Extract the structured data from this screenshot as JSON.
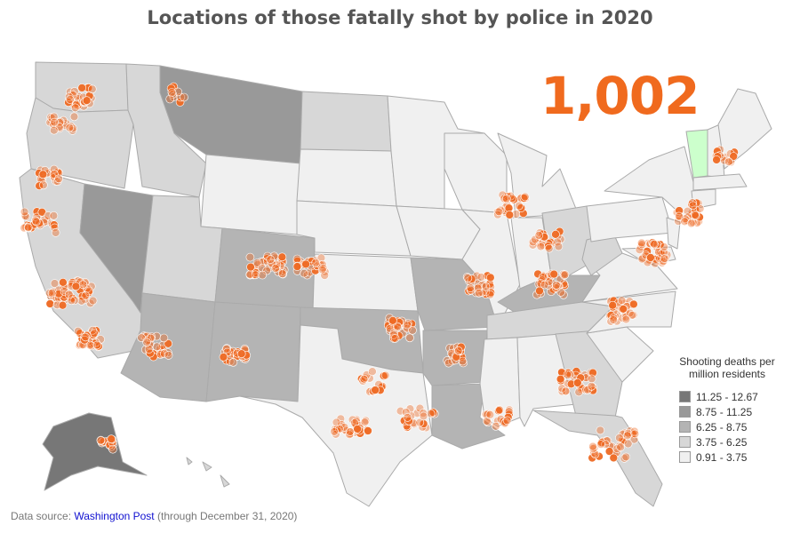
{
  "title": "Locations of those fatally shot by police in 2020",
  "total_count": "1,002",
  "legend": {
    "title_line1": "Shooting deaths per",
    "title_line2": "million residents",
    "items": [
      {
        "label": "11.25 - 12.67",
        "color": "#777777"
      },
      {
        "label": "8.75 - 11.25",
        "color": "#999999"
      },
      {
        "label": "6.25 - 8.75",
        "color": "#b4b4b4"
      },
      {
        "label": "3.75 - 6.25",
        "color": "#d7d7d7"
      },
      {
        "label": "0.91 - 3.75",
        "color": "#f0f0f0"
      }
    ]
  },
  "source": {
    "prefix": "Data source: ",
    "link_text": "Washington Post",
    "suffix": " (through December 31, 2020)"
  },
  "colors": {
    "dot": "#ee6a24",
    "highlight_state": "#ccffcc",
    "border": "#aaaaaa",
    "title": "#555555",
    "count": "#f06a1e"
  }
}
